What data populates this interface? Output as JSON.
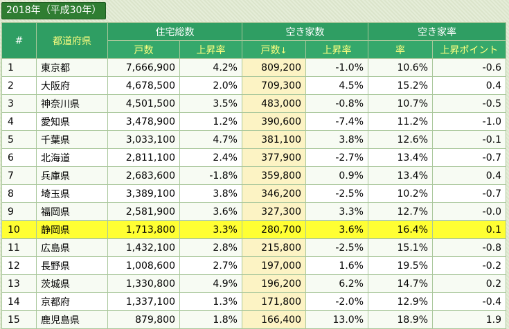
{
  "caption": "2018年（平成30年）",
  "headers": {
    "index": "#",
    "pref": "都道府県",
    "group_houses": "住宅総数",
    "group_vacant": "空き家数",
    "group_rate": "空き家率",
    "houses_count": "戸数",
    "houses_rise": "上昇率",
    "vacant_count": "戸数",
    "vacant_sort_arrow": "↓",
    "vacant_rise": "上昇率",
    "rate": "率",
    "rate_rise": "上昇ポイント"
  },
  "highlight_index": "10",
  "rows": [
    {
      "idx": "1",
      "pref": "東京都",
      "houses": "7,666,900",
      "houses_rise": "4.2%",
      "vacant": "809,200",
      "vacant_rise": "-1.0%",
      "rate": "10.6%",
      "rate_rise": "-0.6"
    },
    {
      "idx": "2",
      "pref": "大阪府",
      "houses": "4,678,500",
      "houses_rise": "2.0%",
      "vacant": "709,300",
      "vacant_rise": "4.5%",
      "rate": "15.2%",
      "rate_rise": "0.4"
    },
    {
      "idx": "3",
      "pref": "神奈川県",
      "houses": "4,501,500",
      "houses_rise": "3.5%",
      "vacant": "483,000",
      "vacant_rise": "-0.8%",
      "rate": "10.7%",
      "rate_rise": "-0.5"
    },
    {
      "idx": "4",
      "pref": "愛知県",
      "houses": "3,478,900",
      "houses_rise": "1.2%",
      "vacant": "390,600",
      "vacant_rise": "-7.4%",
      "rate": "11.2%",
      "rate_rise": "-1.0"
    },
    {
      "idx": "5",
      "pref": "千葉県",
      "houses": "3,033,100",
      "houses_rise": "4.7%",
      "vacant": "381,100",
      "vacant_rise": "3.8%",
      "rate": "12.6%",
      "rate_rise": "-0.1"
    },
    {
      "idx": "6",
      "pref": "北海道",
      "houses": "2,811,100",
      "houses_rise": "2.4%",
      "vacant": "377,900",
      "vacant_rise": "-2.7%",
      "rate": "13.4%",
      "rate_rise": "-0.7"
    },
    {
      "idx": "7",
      "pref": "兵庫県",
      "houses": "2,683,600",
      "houses_rise": "-1.8%",
      "vacant": "359,800",
      "vacant_rise": "0.9%",
      "rate": "13.4%",
      "rate_rise": "0.4"
    },
    {
      "idx": "8",
      "pref": "埼玉県",
      "houses": "3,389,100",
      "houses_rise": "3.8%",
      "vacant": "346,200",
      "vacant_rise": "-2.5%",
      "rate": "10.2%",
      "rate_rise": "-0.7"
    },
    {
      "idx": "9",
      "pref": "福岡県",
      "houses": "2,581,900",
      "houses_rise": "3.6%",
      "vacant": "327,300",
      "vacant_rise": "3.3%",
      "rate": "12.7%",
      "rate_rise": "-0.0"
    },
    {
      "idx": "10",
      "pref": "静岡県",
      "houses": "1,713,800",
      "houses_rise": "3.3%",
      "vacant": "280,700",
      "vacant_rise": "3.6%",
      "rate": "16.4%",
      "rate_rise": "0.1"
    },
    {
      "idx": "11",
      "pref": "広島県",
      "houses": "1,432,100",
      "houses_rise": "2.8%",
      "vacant": "215,800",
      "vacant_rise": "-2.5%",
      "rate": "15.1%",
      "rate_rise": "-0.8"
    },
    {
      "idx": "12",
      "pref": "長野県",
      "houses": "1,008,600",
      "houses_rise": "2.7%",
      "vacant": "197,000",
      "vacant_rise": "1.6%",
      "rate": "19.5%",
      "rate_rise": "-0.2"
    },
    {
      "idx": "13",
      "pref": "茨城県",
      "houses": "1,330,800",
      "houses_rise": "4.9%",
      "vacant": "196,200",
      "vacant_rise": "6.2%",
      "rate": "14.7%",
      "rate_rise": "0.2"
    },
    {
      "idx": "14",
      "pref": "京都府",
      "houses": "1,337,100",
      "houses_rise": "1.3%",
      "vacant": "171,800",
      "vacant_rise": "-2.0%",
      "rate": "12.9%",
      "rate_rise": "-0.4"
    },
    {
      "idx": "15",
      "pref": "鹿児島県",
      "houses": "879,800",
      "houses_rise": "1.8%",
      "vacant": "166,400",
      "vacant_rise": "13.0%",
      "rate": "18.9%",
      "rate_rise": "1.9"
    }
  ]
}
